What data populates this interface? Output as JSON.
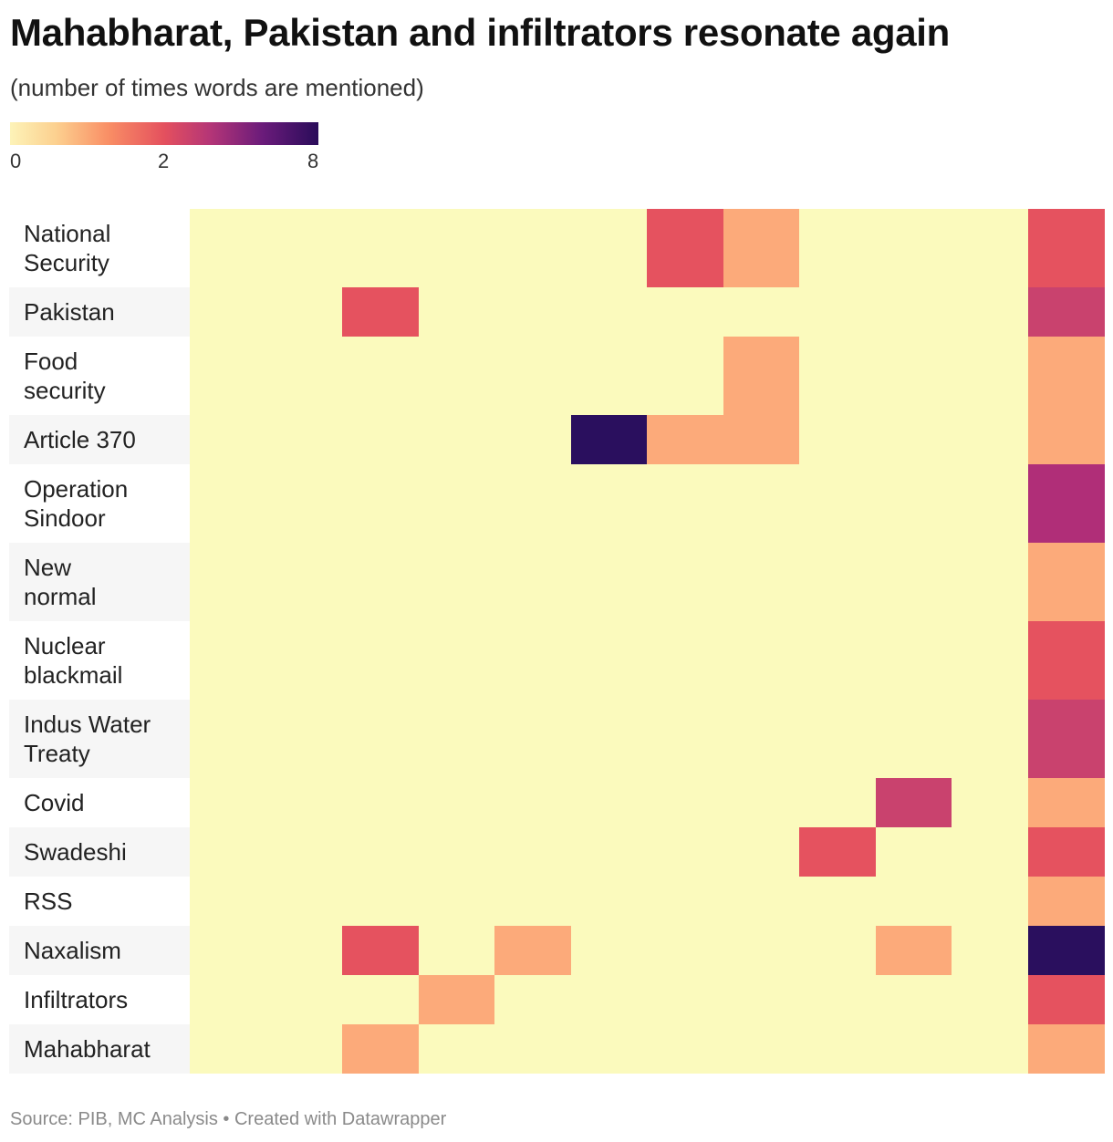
{
  "header": {
    "title": "Mahabharat, Pakistan and infiltrators resonate again",
    "subtitle": "(number of times words are mentioned)"
  },
  "legend": {
    "ticks": [
      "0",
      "2",
      "8"
    ],
    "min": 0,
    "max": 8
  },
  "footer": {
    "source": "Source: PIB, MC Analysis • Created with Datawrapper"
  },
  "chart_data": {
    "type": "heatmap",
    "title": "Mahabharat, Pakistan and infiltrators resonate again",
    "subtitle": "(number of times words are mentioned)",
    "column_count": 12,
    "color_scale": {
      "min": 0,
      "max": 8,
      "ticks": [
        0,
        2,
        8
      ],
      "colors": [
        "#fbfabd",
        "#fcaa7a",
        "#e5525f",
        "#c9426e",
        "#b02e78",
        "#2a0f5e"
      ]
    },
    "rows": [
      {
        "label": "National\nSecurity",
        "values": [
          0,
          0,
          0,
          0,
          0,
          0,
          2,
          1,
          0,
          0,
          0,
          2
        ]
      },
      {
        "label": "Pakistan",
        "values": [
          0,
          0,
          2,
          0,
          0,
          0,
          0,
          0,
          0,
          0,
          0,
          3
        ]
      },
      {
        "label": "Food\nsecurity",
        "values": [
          0,
          0,
          0,
          0,
          0,
          0,
          0,
          1,
          0,
          0,
          0,
          1
        ]
      },
      {
        "label": "Article 370",
        "values": [
          0,
          0,
          0,
          0,
          0,
          8,
          1,
          1,
          0,
          0,
          0,
          1
        ]
      },
      {
        "label": "Operation\nSindoor",
        "values": [
          0,
          0,
          0,
          0,
          0,
          0,
          0,
          0,
          0,
          0,
          0,
          4
        ]
      },
      {
        "label": "New\nnormal",
        "values": [
          0,
          0,
          0,
          0,
          0,
          0,
          0,
          0,
          0,
          0,
          0,
          1
        ]
      },
      {
        "label": "Nuclear\nblackmail",
        "values": [
          0,
          0,
          0,
          0,
          0,
          0,
          0,
          0,
          0,
          0,
          0,
          2
        ]
      },
      {
        "label": "Indus Water\nTreaty",
        "values": [
          0,
          0,
          0,
          0,
          0,
          0,
          0,
          0,
          0,
          0,
          0,
          3
        ]
      },
      {
        "label": "Covid",
        "values": [
          0,
          0,
          0,
          0,
          0,
          0,
          0,
          0,
          0,
          3,
          0,
          1
        ]
      },
      {
        "label": "Swadeshi",
        "values": [
          0,
          0,
          0,
          0,
          0,
          0,
          0,
          0,
          2,
          0,
          0,
          2
        ]
      },
      {
        "label": "RSS",
        "values": [
          0,
          0,
          0,
          0,
          0,
          0,
          0,
          0,
          0,
          0,
          0,
          1
        ]
      },
      {
        "label": "Naxalism",
        "values": [
          0,
          0,
          2,
          0,
          1,
          0,
          0,
          0,
          0,
          1,
          0,
          8
        ]
      },
      {
        "label": "Infiltrators",
        "values": [
          0,
          0,
          0,
          1,
          0,
          0,
          0,
          0,
          0,
          0,
          0,
          2
        ]
      },
      {
        "label": "Mahabharat",
        "values": [
          0,
          0,
          1,
          0,
          0,
          0,
          0,
          0,
          0,
          0,
          0,
          1
        ]
      }
    ]
  }
}
